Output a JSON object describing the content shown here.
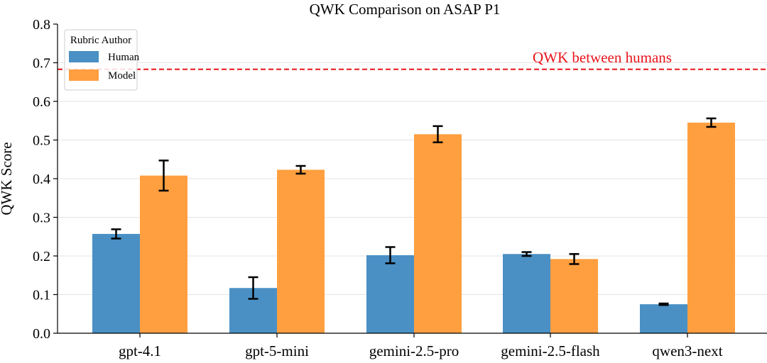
{
  "chart_data": {
    "type": "bar",
    "title": "QWK Comparison on ASAP P1",
    "xlabel": "",
    "ylabel": "QWK Score",
    "ylim": [
      0,
      0.8
    ],
    "yticks": [
      "0.0",
      "0.1",
      "0.2",
      "0.3",
      "0.4",
      "0.5",
      "0.6",
      "0.7",
      "0.8"
    ],
    "grid": true,
    "categories": [
      "gpt-4.1",
      "gpt-5-mini",
      "gemini-2.5-pro",
      "gemini-2.5-flash",
      "qwen3-next"
    ],
    "series": [
      {
        "name": "Human",
        "color": "#4a90c4",
        "values": [
          0.257,
          0.117,
          0.202,
          0.205,
          0.075
        ],
        "errors": [
          0.012,
          0.028,
          0.021,
          0.005,
          0.002
        ]
      },
      {
        "name": "Model",
        "color": "#ff9f40",
        "values": [
          0.408,
          0.423,
          0.515,
          0.192,
          0.545
        ],
        "errors": [
          0.039,
          0.01,
          0.021,
          0.013,
          0.011
        ]
      }
    ],
    "legend": {
      "title": "Rubric Author",
      "placement": "top-left"
    },
    "reference_line": {
      "value": 0.683,
      "label": "QWK between humans",
      "color": "#e8141b"
    }
  }
}
